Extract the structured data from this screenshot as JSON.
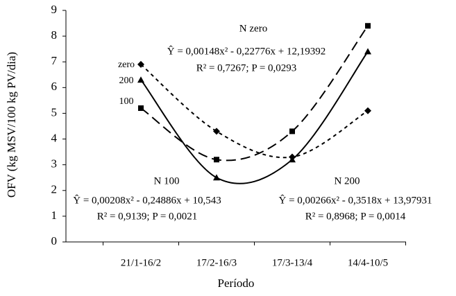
{
  "chart_data": {
    "type": "line",
    "y_label": "OFV (kg MSV/100 kg PV/dia)",
    "x_label": "Período",
    "categories": [
      "21/1-16/2",
      "17/2-16/3",
      "17/3-13/4",
      "14/4-10/5"
    ],
    "series": [
      {
        "name": "zero",
        "marker": "diamond",
        "dash": "5,5",
        "color": "#000000",
        "values": [
          6.9,
          4.3,
          3.3,
          5.1
        ]
      },
      {
        "name": "200",
        "marker": "triangle",
        "dash": "none",
        "color": "#000000",
        "values": [
          6.3,
          2.5,
          3.2,
          7.4
        ]
      },
      {
        "name": "100",
        "marker": "square",
        "dash": "14,7",
        "color": "#000000",
        "values": [
          5.2,
          3.2,
          4.3,
          8.4
        ]
      }
    ],
    "ylim": [
      0,
      9
    ],
    "yticks": [
      0,
      1,
      2,
      3,
      4,
      5,
      6,
      7,
      8,
      9
    ],
    "annotations": [
      "N zero",
      "Ŷ = 0,00148x² - 0,22776x + 12,19392",
      "R² = 0,7267; P = 0,0293",
      "N 100",
      "Ŷ = 0,00208x² - 0,24886x + 10,543",
      "R² = 0,9139; P = 0,0021",
      "N 200",
      "Ŷ = 0,00266x² - 0,3518x + 13,97931",
      "R² = 0,8968; P = 0,0014"
    ]
  }
}
